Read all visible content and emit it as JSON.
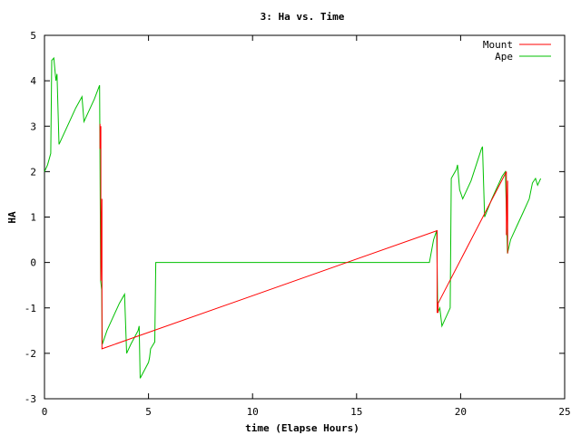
{
  "chart_data": {
    "type": "line",
    "title": "3: Ha vs. Time",
    "xlabel": "time (Elapse Hours)",
    "ylabel": "HA",
    "xlim": [
      0,
      25
    ],
    "ylim": [
      -3,
      5
    ],
    "xticks": [
      0,
      5,
      10,
      15,
      20,
      25
    ],
    "yticks": [
      -3,
      -2,
      -1,
      0,
      1,
      2,
      3,
      4,
      5
    ],
    "grid": false,
    "legend_position": "top-right",
    "series": [
      {
        "name": "Mount",
        "color": "#ff0000",
        "points": [
          [
            2.67,
            3.05
          ],
          [
            2.67,
            2.5
          ],
          [
            2.71,
            3.0
          ],
          [
            2.71,
            -0.4
          ],
          [
            2.76,
            1.4
          ],
          [
            2.76,
            -1.9
          ],
          [
            18.87,
            0.7
          ],
          [
            18.87,
            -1.1
          ],
          [
            18.92,
            -1.1
          ],
          [
            18.92,
            -0.9
          ],
          [
            22.2,
            2.0
          ],
          [
            22.2,
            0.6
          ],
          [
            22.26,
            1.8
          ],
          [
            22.26,
            0.2
          ]
        ]
      },
      {
        "name": "Ape",
        "color": "#00c000",
        "points": [
          [
            0.0,
            2.0
          ],
          [
            0.15,
            2.15
          ],
          [
            0.3,
            2.4
          ],
          [
            0.35,
            4.45
          ],
          [
            0.45,
            4.5
          ],
          [
            0.55,
            4.0
          ],
          [
            0.6,
            4.15
          ],
          [
            0.7,
            2.6
          ],
          [
            0.9,
            2.8
          ],
          [
            1.1,
            3.0
          ],
          [
            1.5,
            3.4
          ],
          [
            1.8,
            3.65
          ],
          [
            1.9,
            3.1
          ],
          [
            2.1,
            3.3
          ],
          [
            2.4,
            3.6
          ],
          [
            2.65,
            3.9
          ],
          [
            2.7,
            -0.4
          ],
          [
            2.75,
            -0.6
          ],
          [
            2.78,
            -1.8
          ],
          [
            3.0,
            -1.5
          ],
          [
            3.3,
            -1.2
          ],
          [
            3.6,
            -0.9
          ],
          [
            3.85,
            -0.7
          ],
          [
            3.95,
            -2.0
          ],
          [
            4.15,
            -1.8
          ],
          [
            4.5,
            -1.5
          ],
          [
            4.55,
            -1.4
          ],
          [
            4.6,
            -2.55
          ],
          [
            5.0,
            -2.2
          ],
          [
            5.05,
            -2.1
          ],
          [
            5.1,
            -1.9
          ],
          [
            5.3,
            -1.75
          ],
          [
            5.35,
            0.0
          ],
          [
            18.5,
            0.0
          ],
          [
            18.7,
            0.5
          ],
          [
            18.85,
            0.7
          ],
          [
            18.9,
            -1.1
          ],
          [
            19.0,
            -1.0
          ],
          [
            19.1,
            -1.4
          ],
          [
            19.5,
            -1.0
          ],
          [
            19.55,
            1.85
          ],
          [
            19.8,
            2.05
          ],
          [
            19.85,
            2.15
          ],
          [
            19.95,
            1.6
          ],
          [
            20.1,
            1.4
          ],
          [
            20.5,
            1.8
          ],
          [
            21.0,
            2.5
          ],
          [
            21.05,
            2.55
          ],
          [
            21.15,
            1.0
          ],
          [
            21.5,
            1.4
          ],
          [
            22.0,
            1.9
          ],
          [
            22.15,
            2.0
          ],
          [
            22.25,
            0.2
          ],
          [
            22.4,
            0.5
          ],
          [
            22.7,
            0.8
          ],
          [
            23.0,
            1.1
          ],
          [
            23.3,
            1.4
          ],
          [
            23.45,
            1.75
          ],
          [
            23.6,
            1.85
          ],
          [
            23.7,
            1.7
          ],
          [
            23.85,
            1.85
          ]
        ]
      }
    ]
  }
}
